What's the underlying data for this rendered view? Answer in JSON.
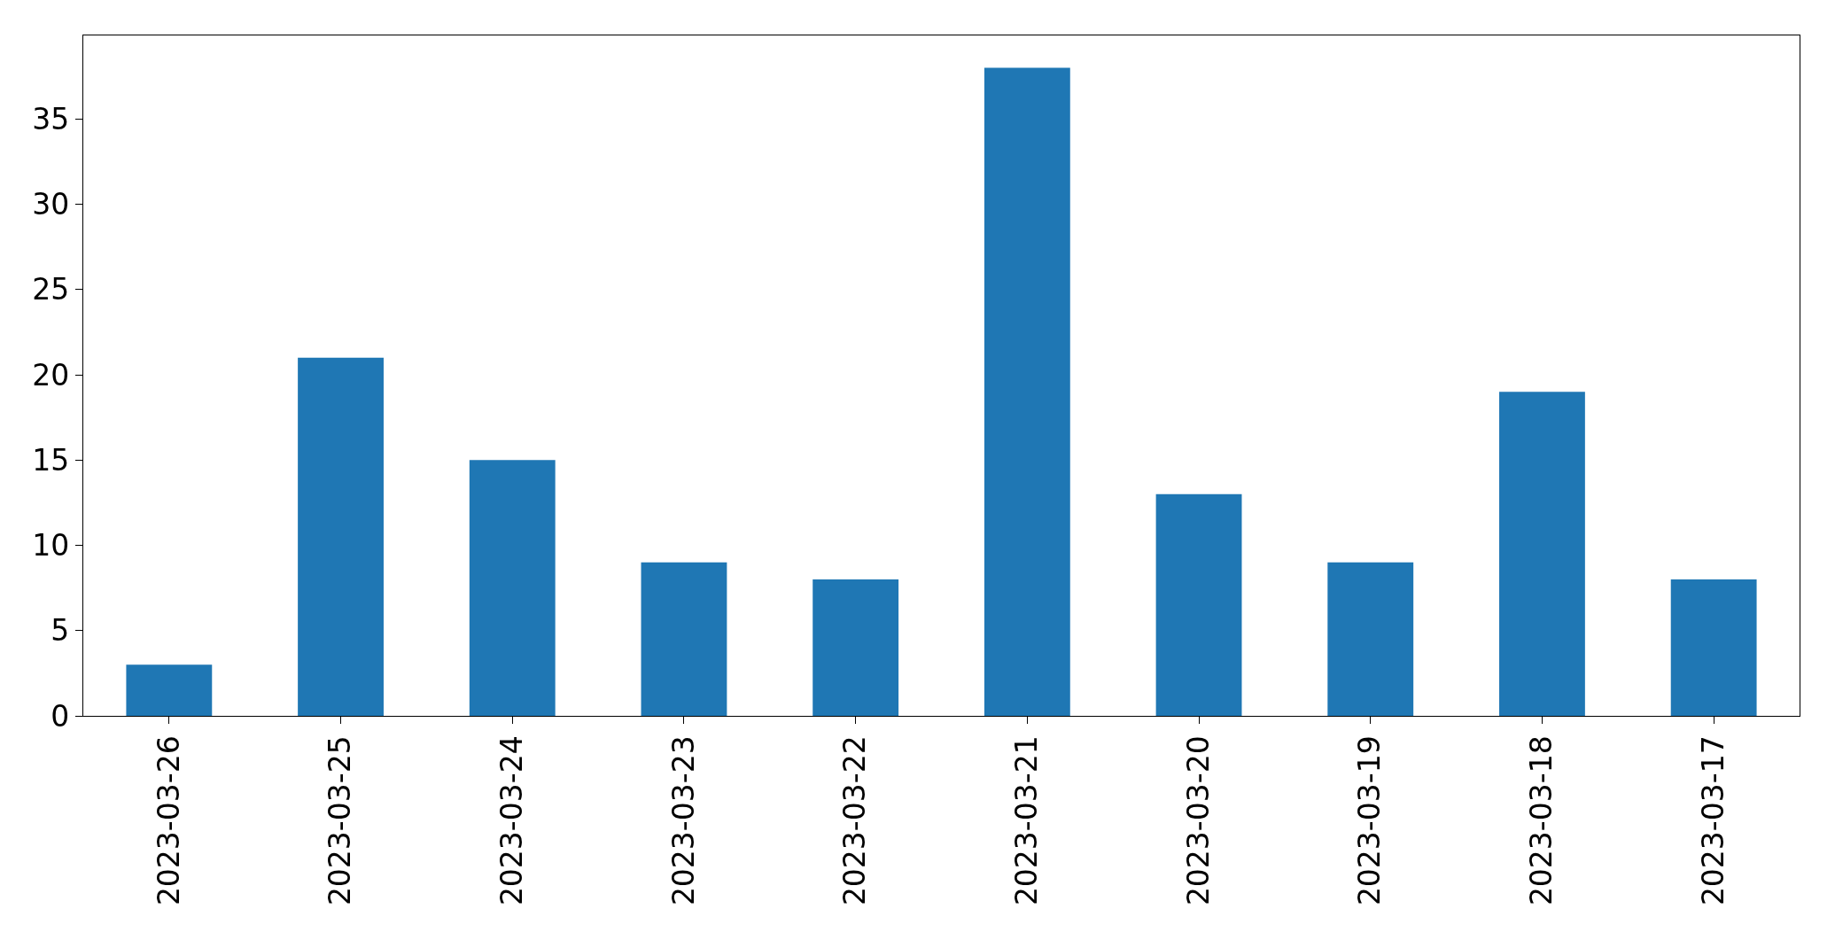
{
  "chart_data": {
    "type": "bar",
    "categories": [
      "2023-03-26",
      "2023-03-25",
      "2023-03-24",
      "2023-03-23",
      "2023-03-22",
      "2023-03-21",
      "2023-03-20",
      "2023-03-19",
      "2023-03-18",
      "2023-03-17"
    ],
    "values": [
      3,
      21,
      15,
      9,
      8,
      38,
      13,
      9,
      19,
      8
    ],
    "color": "#1f77b4",
    "ylim": [
      0,
      39.9
    ],
    "yticks": [
      0,
      5,
      10,
      15,
      20,
      25,
      30,
      35
    ]
  }
}
